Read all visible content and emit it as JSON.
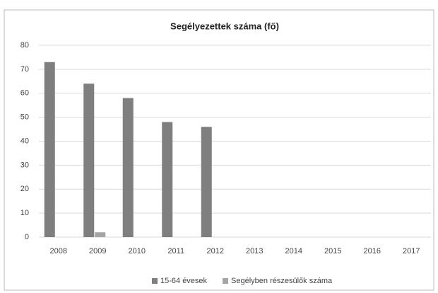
{
  "chart_data": {
    "type": "bar",
    "title": "Segélyezettek száma (fő)",
    "categories": [
      "2008",
      "2009",
      "2010",
      "2011",
      "2012",
      "2013",
      "2014",
      "2015",
      "2016",
      "2017"
    ],
    "series": [
      {
        "name": "15-64 évesek",
        "color": "#7f7f7f",
        "values": [
          73,
          64,
          58,
          48,
          46,
          null,
          null,
          null,
          null,
          null
        ]
      },
      {
        "name": "Segélyben részesülők száma",
        "color": "#a5a5a5",
        "values": [
          null,
          2,
          null,
          null,
          null,
          null,
          null,
          null,
          null,
          null
        ]
      }
    ],
    "ylim": [
      0,
      80
    ],
    "yticks": [
      0,
      10,
      20,
      30,
      40,
      50,
      60,
      70,
      80
    ],
    "grid": true
  }
}
